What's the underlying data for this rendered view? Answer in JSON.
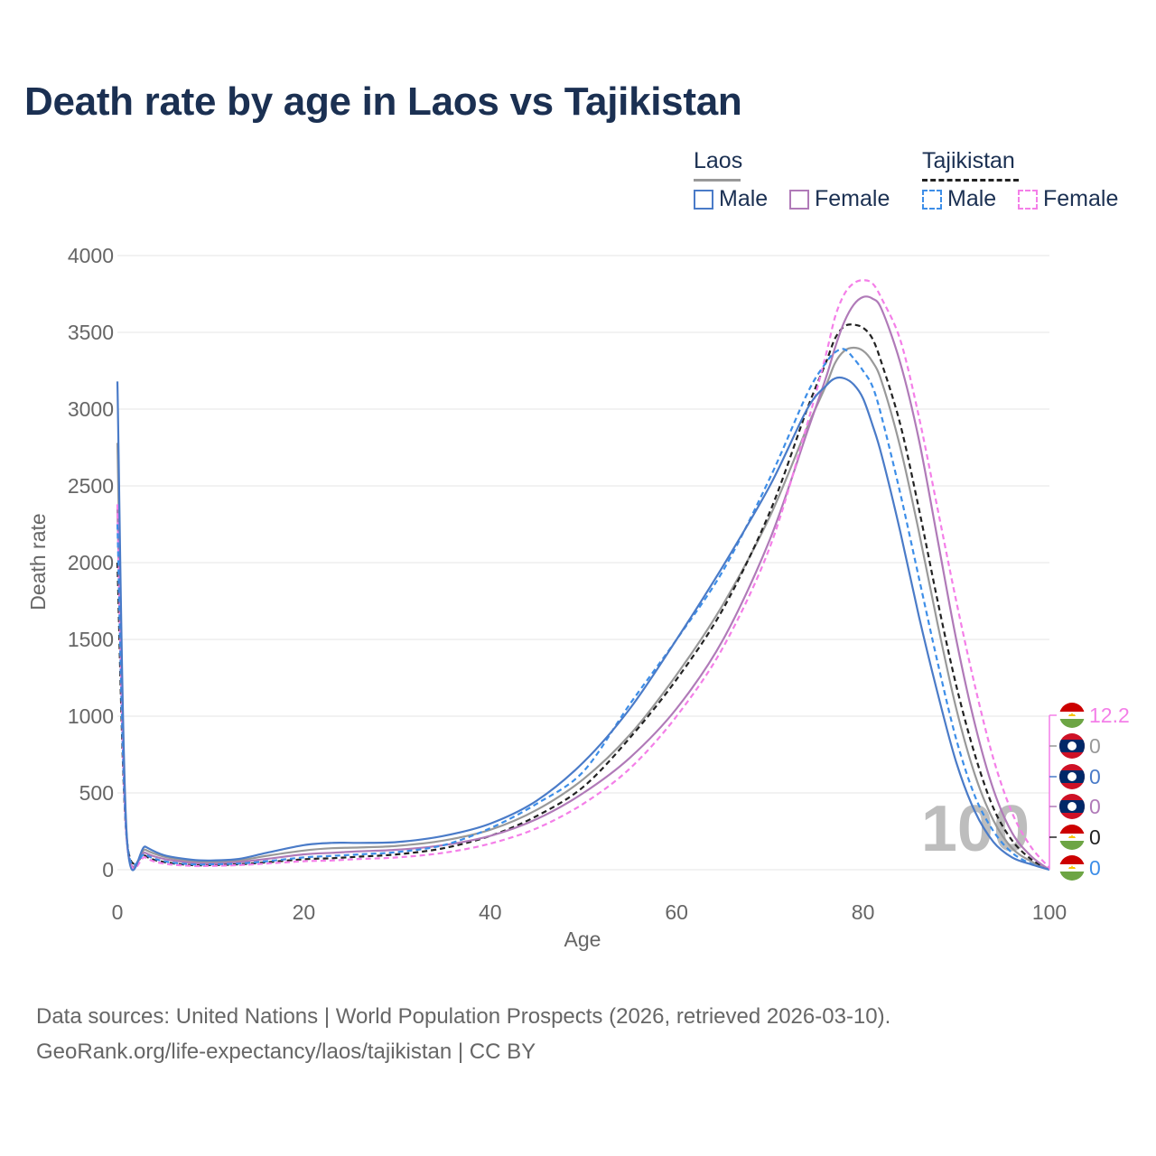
{
  "title": "Death rate by age in Laos vs Tajikistan",
  "legend": {
    "groups": [
      {
        "name": "Laos",
        "items": [
          "Male",
          "Female"
        ]
      },
      {
        "name": "Tajikistan",
        "items": [
          "Male",
          "Female"
        ]
      }
    ]
  },
  "colors": {
    "laos_total": "#999999",
    "laos_male": "#4a7bc8",
    "laos_female": "#b07ab8",
    "tajikistan_total": "#222222",
    "tajikistan_male": "#3d8ee8",
    "tajikistan_female": "#f47fe8",
    "title": "#1b3052",
    "axis_text": "#666666"
  },
  "watermark": "100",
  "end_labels": [
    {
      "series": "Tajikistan Female",
      "value": "12.2",
      "flag": "tajikistan-flag"
    },
    {
      "series": "Laos Total",
      "value": "0",
      "flag": "laos-flag"
    },
    {
      "series": "Laos Male",
      "value": "0",
      "flag": "laos-flag"
    },
    {
      "series": "Laos Female",
      "value": "0",
      "flag": "laos-flag"
    },
    {
      "series": "Tajikistan Total",
      "value": "0",
      "flag": "tajikistan-flag"
    },
    {
      "series": "Tajikistan Male",
      "value": "0",
      "flag": "tajikistan-flag"
    }
  ],
  "sources": {
    "line1": "Data sources: United Nations | World Population Prospects (2026, retrieved 2026-03-10).",
    "line2": "GeoRank.org/life-expectancy/laos/tajikistan | CC BY"
  },
  "chart_data": {
    "type": "line",
    "title": "Death rate by age in Laos vs Tajikistan",
    "xlabel": "Age",
    "ylabel": "Death rate",
    "xlim": [
      0,
      100
    ],
    "ylim": [
      0,
      4000
    ],
    "xticks": [
      0,
      20,
      40,
      60,
      80,
      100
    ],
    "yticks": [
      0,
      500,
      1000,
      1500,
      2000,
      2500,
      3000,
      3500,
      4000
    ],
    "grid": true,
    "x": [
      0,
      1,
      3,
      5,
      8,
      10,
      13,
      16,
      20,
      23,
      26,
      30,
      35,
      40,
      45,
      50,
      55,
      60,
      65,
      70,
      74,
      76,
      77,
      78,
      79,
      80,
      81,
      82,
      84,
      86,
      88,
      90,
      92,
      94,
      96,
      98,
      100
    ],
    "series": [
      {
        "name": "Laos Male",
        "key": "laos_male",
        "dashed": false,
        "values": [
          3180,
          230,
          150,
          95,
          65,
          60,
          70,
          110,
          160,
          175,
          175,
          180,
          220,
          300,
          450,
          700,
          1050,
          1500,
          1980,
          2500,
          3000,
          3150,
          3200,
          3200,
          3160,
          3070,
          2900,
          2700,
          2200,
          1650,
          1150,
          700,
          380,
          180,
          80,
          35,
          0
        ]
      },
      {
        "name": "Laos Female",
        "key": "laos_female",
        "dashed": false,
        "values": [
          2350,
          200,
          110,
          70,
          45,
          40,
          50,
          70,
          100,
          110,
          120,
          130,
          160,
          220,
          330,
          500,
          730,
          1050,
          1500,
          2150,
          2850,
          3200,
          3400,
          3570,
          3680,
          3730,
          3720,
          3650,
          3300,
          2800,
          2150,
          1500,
          950,
          520,
          240,
          90,
          0
        ]
      },
      {
        "name": "Laos Total",
        "key": "laos_total",
        "dashed": false,
        "values": [
          2780,
          215,
          130,
          85,
          55,
          50,
          60,
          90,
          125,
          140,
          145,
          155,
          190,
          260,
          390,
          590,
          880,
          1270,
          1730,
          2300,
          2880,
          3150,
          3300,
          3380,
          3400,
          3380,
          3310,
          3180,
          2750,
          2200,
          1600,
          1050,
          620,
          320,
          140,
          55,
          0
        ]
      },
      {
        "name": "Tajikistan Male",
        "key": "tajikistan_male",
        "dashed": true,
        "values": [
          2250,
          210,
          100,
          55,
          35,
          35,
          40,
          55,
          80,
          90,
          100,
          115,
          160,
          270,
          430,
          640,
          1080,
          1500,
          1950,
          2550,
          3100,
          3300,
          3370,
          3390,
          3330,
          3250,
          3150,
          2950,
          2450,
          1900,
          1350,
          850,
          480,
          250,
          110,
          40,
          0
        ]
      },
      {
        "name": "Tajikistan Female",
        "key": "tajikistan_female",
        "dashed": true,
        "values": [
          2380,
          200,
          80,
          40,
          25,
          25,
          30,
          40,
          55,
          60,
          70,
          80,
          110,
          170,
          270,
          430,
          660,
          1000,
          1450,
          2100,
          2900,
          3350,
          3600,
          3750,
          3820,
          3840,
          3820,
          3720,
          3450,
          2950,
          2350,
          1750,
          1200,
          720,
          370,
          150,
          12.2
        ]
      },
      {
        "name": "Tajikistan Total",
        "key": "tajikistan_total",
        "dashed": true,
        "values": [
          2000,
          205,
          90,
          50,
          30,
          30,
          35,
          48,
          68,
          75,
          85,
          100,
          140,
          220,
          350,
          540,
          860,
          1240,
          1700,
          2330,
          3000,
          3300,
          3460,
          3540,
          3550,
          3530,
          3460,
          3300,
          2900,
          2350,
          1750,
          1200,
          750,
          400,
          190,
          70,
          0
        ]
      }
    ]
  }
}
